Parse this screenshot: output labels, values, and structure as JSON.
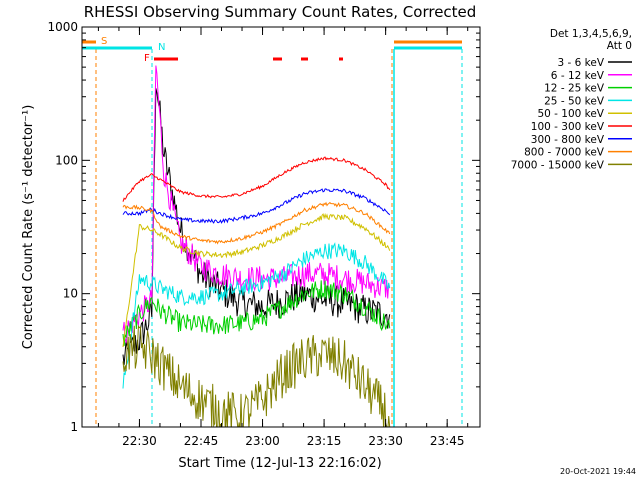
{
  "chart_data": {
    "type": "line",
    "title": "RHESSI Observing Summary Count Rates, Corrected",
    "xlabel": "Start Time (12-Jul-13 22:16:02)",
    "ylabel": "Corrected Count Rate (s⁻¹ detector⁻¹)",
    "y_scale": "log",
    "ylim": [
      1,
      1000
    ],
    "xlim": [
      "22:16",
      "23:53"
    ],
    "x_ticks": [
      "22:30",
      "22:45",
      "23:00",
      "23:15",
      "23:30",
      "23:45"
    ],
    "y_ticks": [
      "1",
      "10",
      "100",
      "1000"
    ],
    "footer_date": "20-Oct-2021 19:44",
    "legend": {
      "placement": "right",
      "header_lines": [
        "Det 1,3,4,5,6,9,",
        "Att 0"
      ]
    },
    "flags": [
      {
        "label": "S",
        "color": "#ff8000"
      },
      {
        "label": "N",
        "color": "#00e5e5"
      },
      {
        "label": "F",
        "color": "#ff0000"
      }
    ],
    "series": [
      {
        "name": "3 - 6 keV",
        "color": "#000000",
        "x": [
          "22:26",
          "22:30",
          "22:33",
          "22:34",
          "22:36",
          "22:40",
          "22:45",
          "22:50",
          "22:55",
          "23:00",
          "23:05",
          "23:10",
          "23:15",
          "23:20",
          "23:25",
          "23:30",
          "23:31"
        ],
        "y": [
          3.2,
          4.5,
          7,
          420,
          110,
          30,
          14,
          10.5,
          8.5,
          8,
          8.8,
          10,
          9,
          8.5,
          7.5,
          7,
          7
        ]
      },
      {
        "name": "6 - 12 keV",
        "color": "#ff00ff",
        "x": [
          "22:26",
          "22:30",
          "22:33",
          "22:34",
          "22:36",
          "22:40",
          "22:45",
          "22:50",
          "22:55",
          "23:00",
          "23:05",
          "23:10",
          "23:15",
          "23:20",
          "23:25",
          "23:30",
          "23:31"
        ],
        "y": [
          5,
          7,
          9,
          520,
          80,
          24,
          16,
          14,
          13,
          13,
          13,
          14,
          14,
          13,
          12,
          11,
          11
        ]
      },
      {
        "name": "12 - 25 keV",
        "color": "#00d000",
        "x": [
          "22:26",
          "22:30",
          "22:33",
          "22:35",
          "22:40",
          "22:45",
          "22:50",
          "22:55",
          "23:00",
          "23:05",
          "23:10",
          "23:15",
          "23:20",
          "23:25",
          "23:30",
          "23:31"
        ],
        "y": [
          4.5,
          7,
          9,
          7.5,
          6,
          5.8,
          5.8,
          6,
          6.5,
          8,
          10,
          11,
          10,
          8,
          6,
          5.5
        ]
      },
      {
        "name": "25 - 50 keV",
        "color": "#00e5e5",
        "x": [
          "22:26",
          "22:30",
          "22:33",
          "22:35",
          "22:40",
          "22:45",
          "22:50",
          "22:55",
          "23:00",
          "23:05",
          "23:10",
          "23:15",
          "23:20",
          "23:25",
          "23:30",
          "23:31"
        ],
        "y": [
          2,
          13,
          12,
          11,
          9.5,
          9.5,
          10,
          11,
          12,
          14,
          18,
          21,
          21,
          17,
          12,
          11
        ]
      },
      {
        "name": "50 - 100 keV",
        "color": "#d0c000",
        "x": [
          "22:26",
          "22:30",
          "22:33",
          "22:35",
          "22:40",
          "22:45",
          "22:50",
          "22:55",
          "23:00",
          "23:05",
          "23:10",
          "23:15",
          "23:20",
          "23:25",
          "23:30",
          "23:31"
        ],
        "y": [
          4,
          32,
          30,
          28,
          22,
          20,
          19.5,
          20.5,
          23,
          27,
          33,
          38,
          37,
          31,
          23,
          21
        ]
      },
      {
        "name": "100 - 300 keV",
        "color": "#ff0000",
        "x": [
          "22:26",
          "22:30",
          "22:33",
          "22:35",
          "22:40",
          "22:45",
          "22:50",
          "22:55",
          "23:00",
          "23:05",
          "23:10",
          "23:15",
          "23:20",
          "23:25",
          "23:30",
          "23:31"
        ],
        "y": [
          50,
          70,
          78,
          72,
          58,
          54,
          53,
          56,
          64,
          80,
          96,
          104,
          100,
          85,
          66,
          60
        ]
      },
      {
        "name": "300 - 800 keV",
        "color": "#0000ff",
        "x": [
          "22:26",
          "22:30",
          "22:33",
          "22:35",
          "22:40",
          "22:45",
          "22:50",
          "22:55",
          "23:00",
          "23:05",
          "23:10",
          "23:15",
          "23:20",
          "23:25",
          "23:30",
          "23:31"
        ],
        "y": [
          40,
          40,
          43,
          40,
          36,
          35,
          35,
          37,
          40,
          47,
          56,
          60,
          59,
          52,
          42,
          39
        ]
      },
      {
        "name": "800 - 7000 keV",
        "color": "#ff8000",
        "x": [
          "22:26",
          "22:30",
          "22:33",
          "22:35",
          "22:40",
          "22:45",
          "22:50",
          "22:55",
          "23:00",
          "23:05",
          "23:10",
          "23:15",
          "23:20",
          "23:25",
          "23:30",
          "23:31"
        ],
        "y": [
          45,
          44,
          42,
          32,
          27,
          25,
          24.5,
          26,
          29,
          34,
          42,
          47,
          46,
          40,
          30,
          28
        ]
      },
      {
        "name": "7000 - 15000 keV",
        "color": "#808000",
        "x": [
          "22:26",
          "22:30",
          "22:33",
          "22:35",
          "22:40",
          "22:45",
          "22:50",
          "22:55",
          "23:00",
          "23:05",
          "23:10",
          "23:15",
          "23:20",
          "23:25",
          "23:30",
          "23:31"
        ],
        "y": [
          3.5,
          4,
          3.5,
          3,
          2,
          1.6,
          1.3,
          1.2,
          1.6,
          2.5,
          3.2,
          3.5,
          3,
          2,
          1.3,
          1
        ]
      }
    ]
  }
}
